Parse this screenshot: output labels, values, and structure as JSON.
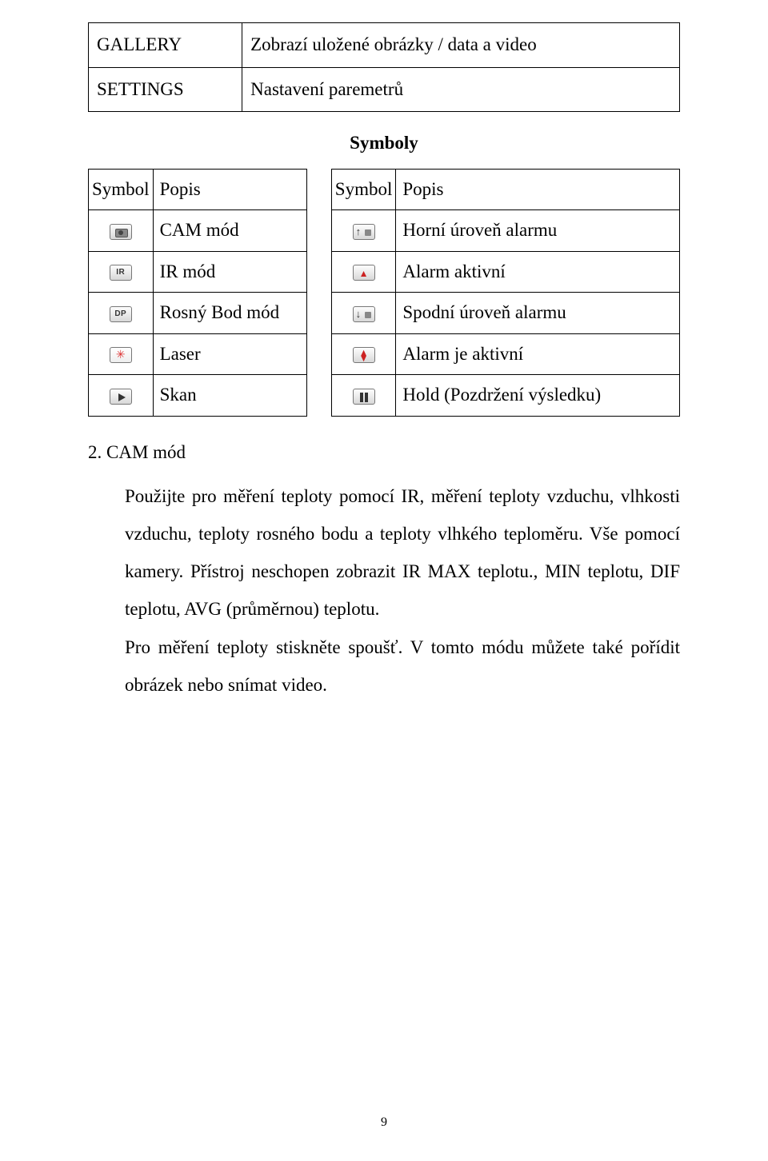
{
  "top_table": {
    "rows": [
      {
        "key": "GALLERY",
        "value": "Zobrazí uložené obrázky / data a video"
      },
      {
        "key": "SETTINGS",
        "value": "Nastavení paremetrů"
      }
    ]
  },
  "symboly_title": "Symboly",
  "symbol_tables": {
    "left": {
      "header": [
        "Symbol",
        "Popis"
      ],
      "rows": [
        {
          "icon": "cam",
          "label": "CAM mód"
        },
        {
          "icon": "ir",
          "label": "IR mód"
        },
        {
          "icon": "dp",
          "label": "Rosný Bod mód"
        },
        {
          "icon": "laser",
          "label": "Laser"
        },
        {
          "icon": "play",
          "label": "Skan"
        }
      ]
    },
    "right": {
      "header": [
        "Symbol",
        "Popis"
      ],
      "rows": [
        {
          "icon": "arrow-up",
          "label": "Horní úroveň alarmu"
        },
        {
          "icon": "bell-red",
          "label": "Alarm aktivní"
        },
        {
          "icon": "arrow-down",
          "label": "Spodní úroveň alarmu"
        },
        {
          "icon": "bell-red2",
          "label": "Alarm je aktivní"
        },
        {
          "icon": "pause",
          "label": "Hold (Pozdržení výsledku)"
        }
      ]
    }
  },
  "section": {
    "heading": "2. CAM mód",
    "paragraph": "Použijte pro měření teploty pomocí IR, měření teploty vzduchu, vlhkosti vzduchu, teploty rosného bodu a teploty vlhkého teploměru. Vše pomocí kamery. Přístroj neschopen zobrazit IR MAX teplotu., MIN teplotu, DIF teplotu, AVG (průměrnou) teplotu."
  },
  "section_tail": "Pro měření teploty stiskněte spoušť. V tomto módu můžete také pořídit obrázek nebo snímat video.",
  "page_number": "9",
  "icon_text": {
    "ir": "IR",
    "dp": "DP"
  }
}
